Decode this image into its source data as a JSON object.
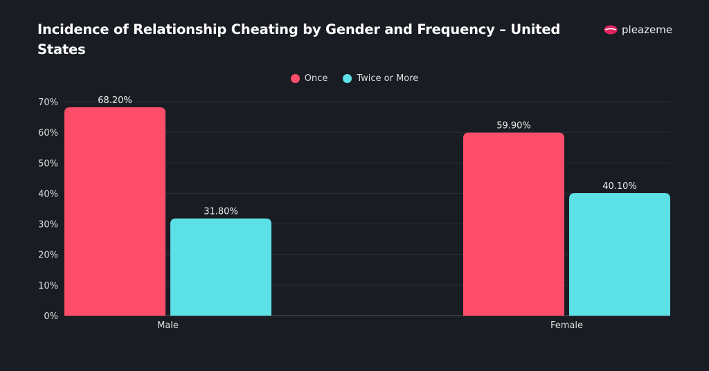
{
  "chart_data": {
    "type": "bar",
    "title": "Incidence of Relationship Cheating by Gender and Frequency – United States",
    "categories": [
      "Male",
      "Female"
    ],
    "series": [
      {
        "name": "Once",
        "values": [
          68.2,
          59.9
        ],
        "labels": [
          "68.20%",
          "59.90%"
        ],
        "color": "#ff4d6a"
      },
      {
        "name": "Twice or More",
        "values": [
          31.8,
          40.1
        ],
        "labels": [
          "31.80%",
          "40.10%"
        ],
        "color": "#5ce1e6"
      }
    ],
    "yticks": [
      "0%",
      "10%",
      "20%",
      "30%",
      "40%",
      "50%",
      "60%",
      "70%"
    ],
    "ylim": [
      0,
      70
    ],
    "grid": true,
    "legend_position": "top-center",
    "xlabel": "",
    "ylabel": ""
  },
  "brand": {
    "name": "pleazeme",
    "icon": "lips-icon",
    "color": "#e0245e"
  }
}
